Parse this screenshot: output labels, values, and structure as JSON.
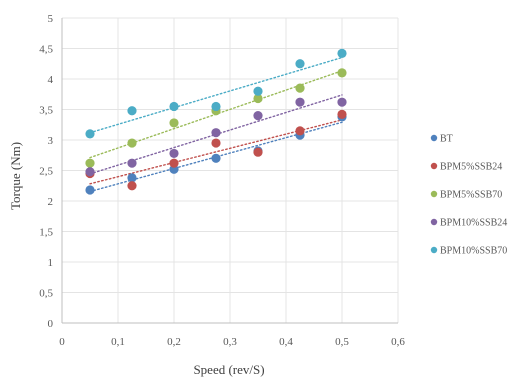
{
  "chart_data": {
    "type": "scatter",
    "title": "",
    "xlabel": "Speed (rev/S)",
    "ylabel": "Torque (Nm)",
    "xlim": [
      0,
      0.6
    ],
    "ylim": [
      0,
      5
    ],
    "xticks": [
      "0",
      "0,1",
      "0,2",
      "0,3",
      "0,4",
      "0,5",
      "0,6"
    ],
    "yticks": [
      "0",
      "0,5",
      "1",
      "1,5",
      "2",
      "2,5",
      "3",
      "3,5",
      "4",
      "4,5",
      "5"
    ],
    "grid": true,
    "legend_position": "right",
    "trendlines": "linear, dotted",
    "series": [
      {
        "name": "BT",
        "color": "#4F81BD",
        "x": [
          0.05,
          0.125,
          0.2,
          0.275,
          0.35,
          0.425,
          0.5
        ],
        "y": [
          2.18,
          2.38,
          2.52,
          2.7,
          2.82,
          3.08,
          3.38
        ]
      },
      {
        "name": "BPM5%SSB24",
        "color": "#C0504D",
        "x": [
          0.05,
          0.125,
          0.2,
          0.275,
          0.35,
          0.425,
          0.5
        ],
        "y": [
          2.45,
          2.25,
          2.62,
          2.95,
          2.8,
          3.15,
          3.42
        ]
      },
      {
        "name": "BPM5%SSB70",
        "color": "#9BBB59",
        "x": [
          0.05,
          0.125,
          0.2,
          0.275,
          0.35,
          0.425,
          0.5
        ],
        "y": [
          2.62,
          2.95,
          3.28,
          3.48,
          3.68,
          3.85,
          4.1
        ]
      },
      {
        "name": "BPM10%SSB24",
        "color": "#8064A2",
        "x": [
          0.05,
          0.125,
          0.2,
          0.275,
          0.35,
          0.425,
          0.5
        ],
        "y": [
          2.48,
          2.62,
          2.78,
          3.12,
          3.4,
          3.62,
          3.62
        ]
      },
      {
        "name": "BPM10%SSB70",
        "color": "#4BACC6",
        "x": [
          0.05,
          0.125,
          0.2,
          0.275,
          0.35,
          0.425,
          0.5
        ],
        "y": [
          3.1,
          3.48,
          3.55,
          3.55,
          3.8,
          4.25,
          4.42
        ]
      }
    ]
  }
}
